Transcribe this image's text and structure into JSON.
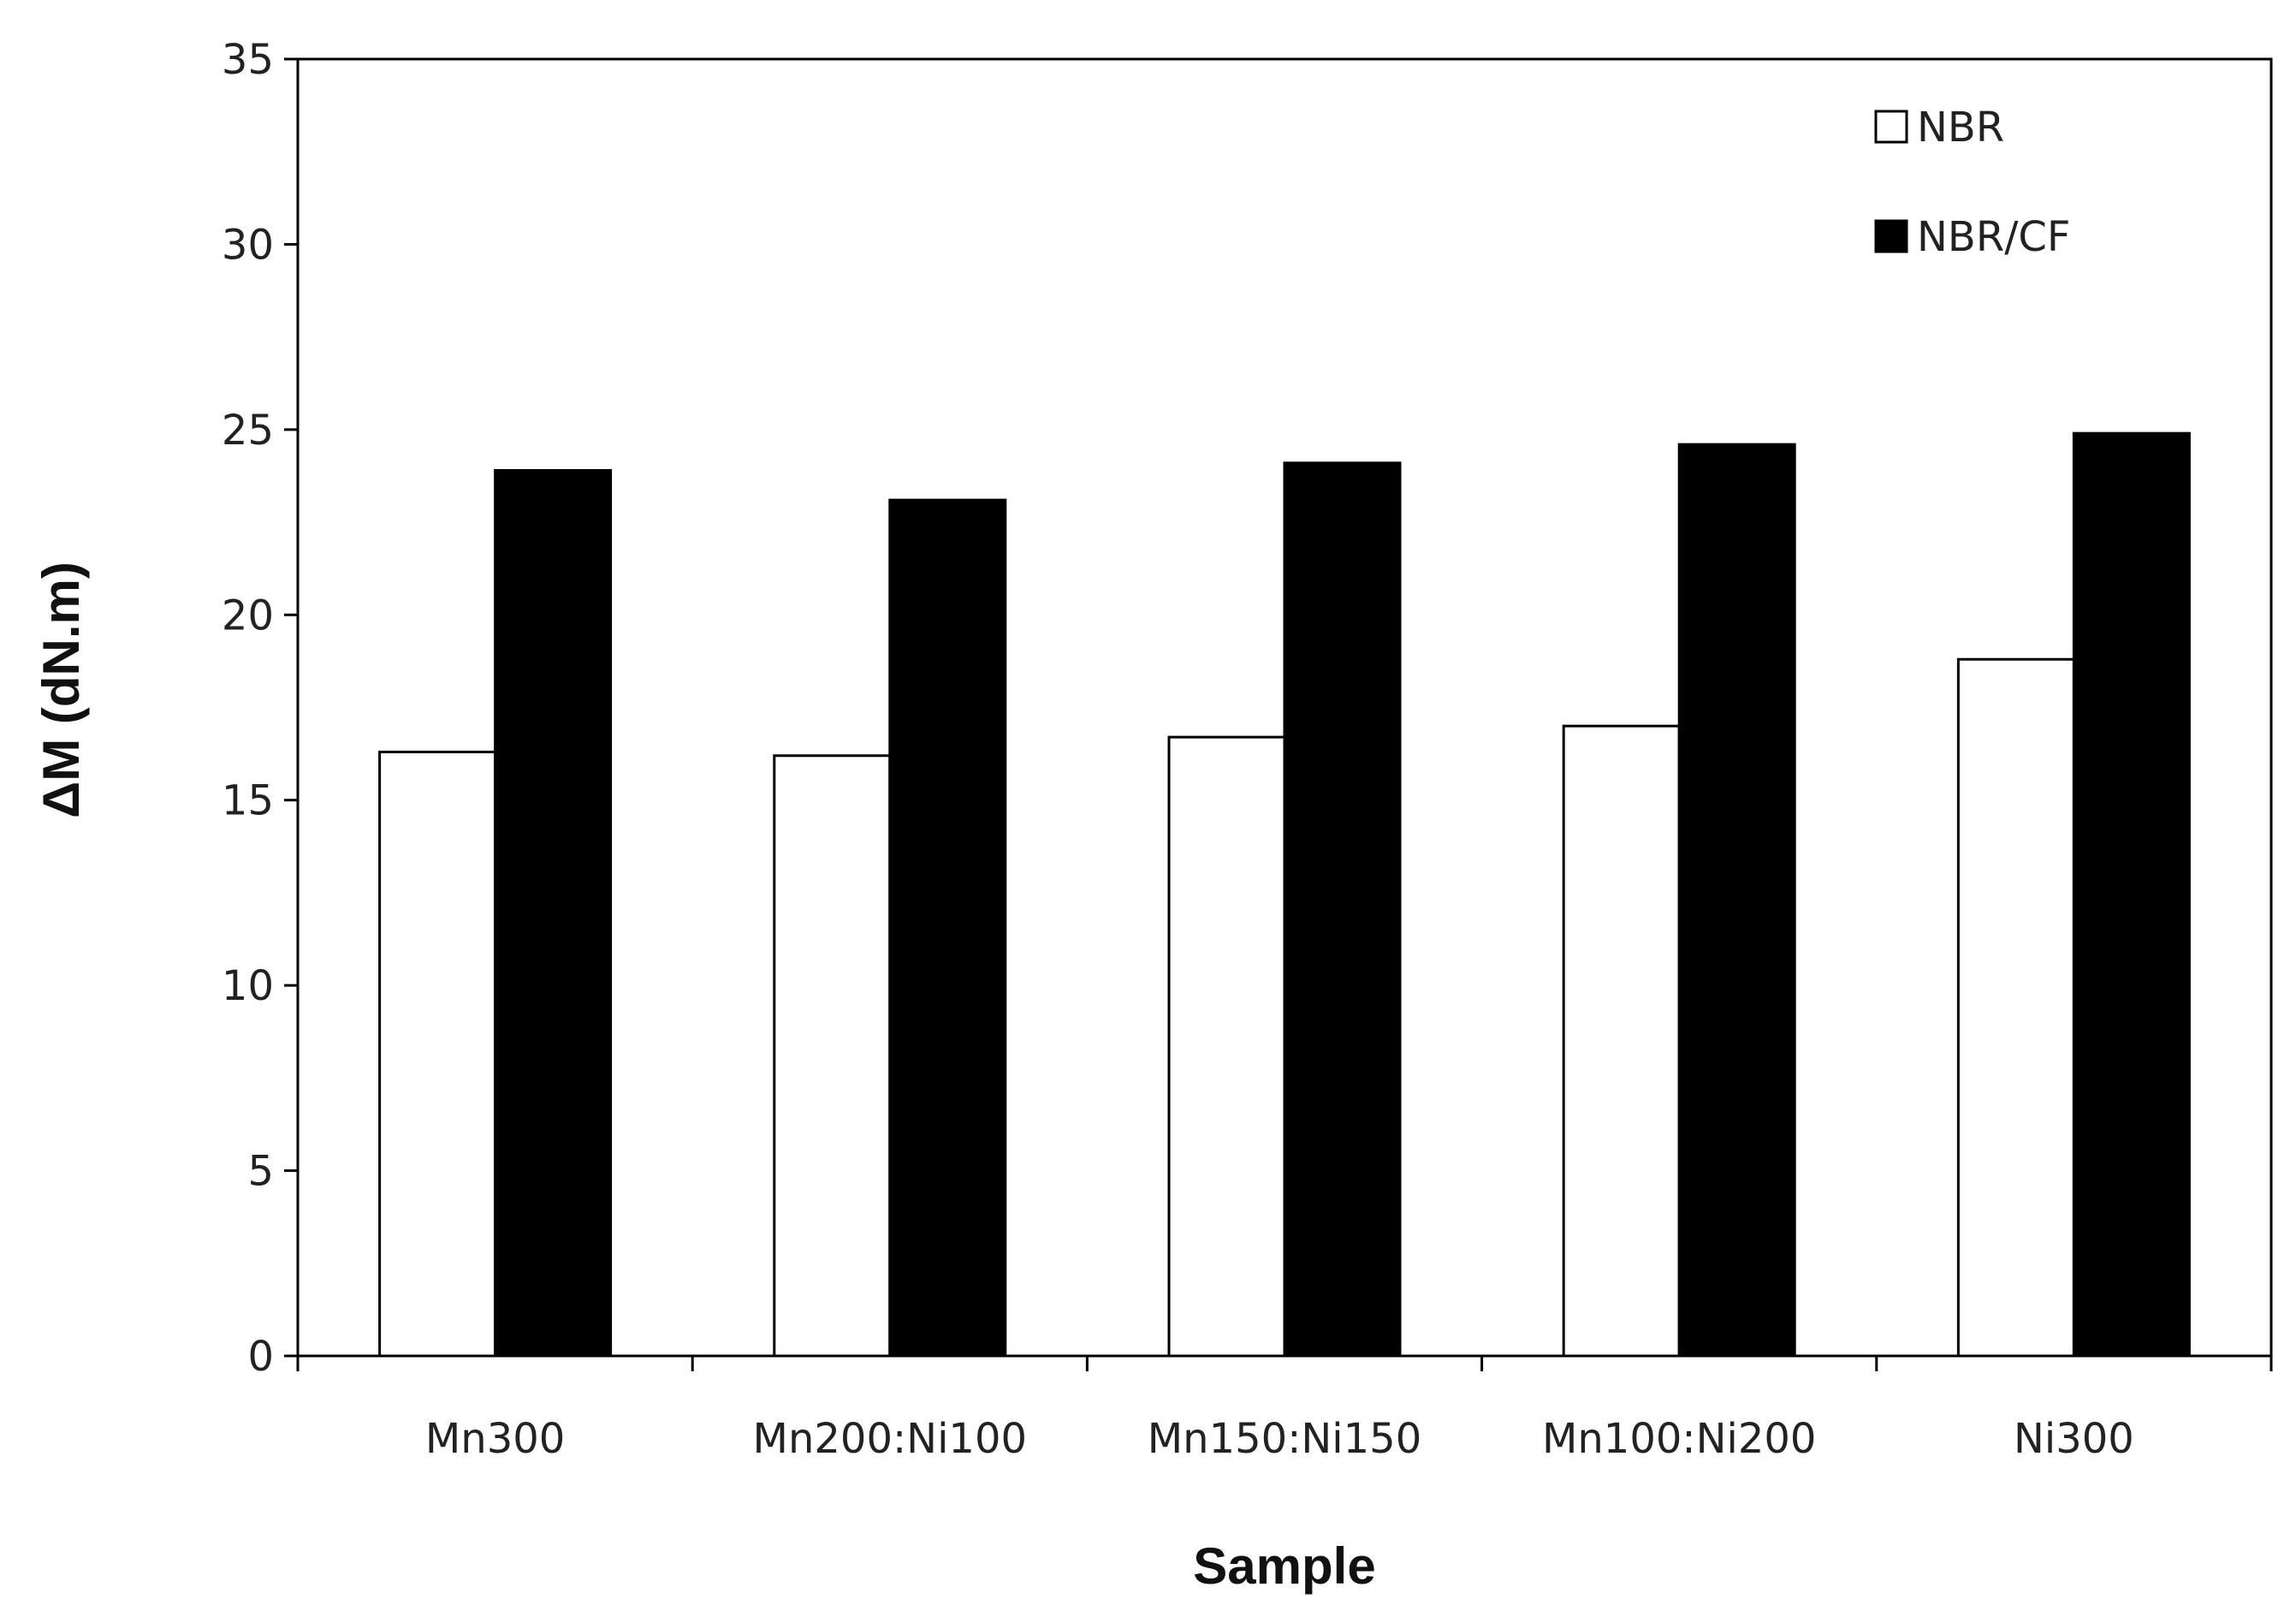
{
  "chart_data": {
    "type": "bar",
    "title": "",
    "xlabel": "Sample",
    "ylabel": "ΔM (dN.m)",
    "ylim": [
      0,
      35
    ],
    "yticks": [
      0,
      5,
      10,
      15,
      20,
      25,
      30,
      35
    ],
    "categories": [
      "Mn300",
      "Mn200:Ni100",
      "Mn150:Ni150",
      "Mn100:Ni200",
      "Ni300"
    ],
    "series": [
      {
        "name": "NBR",
        "fill": "#ffffff",
        "values": [
          16.3,
          16.2,
          16.7,
          17.0,
          18.8
        ]
      },
      {
        "name": "NBR/CF",
        "fill": "#000000",
        "values": [
          23.9,
          23.1,
          24.1,
          24.6,
          24.9
        ]
      }
    ],
    "legend": "top-right",
    "grid": false
  }
}
